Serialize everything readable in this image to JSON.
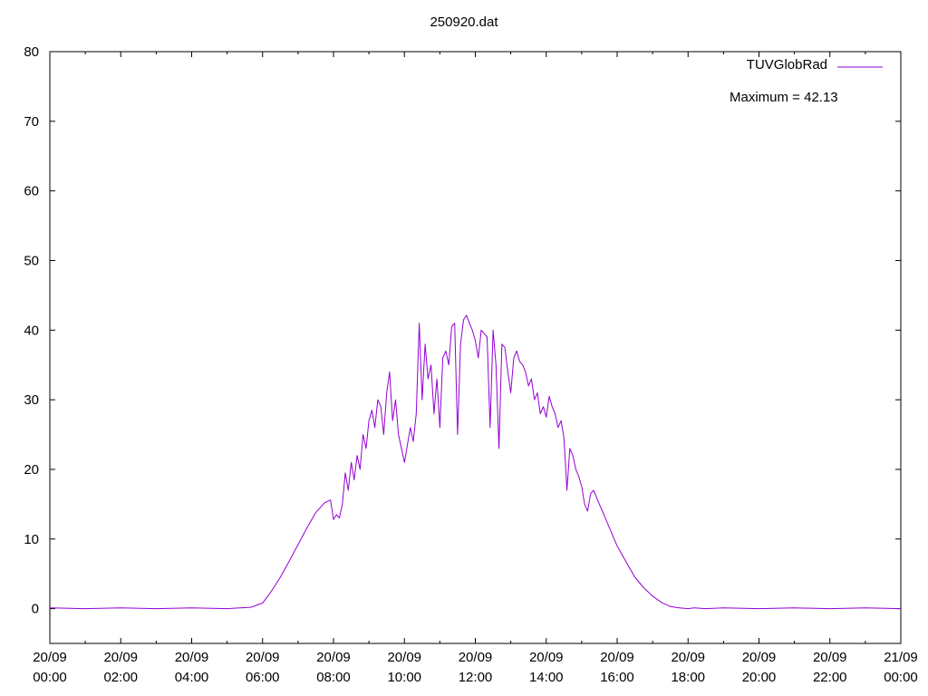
{
  "chart_data": {
    "type": "line",
    "title": "250920.dat",
    "xlabel": "",
    "ylabel": "",
    "ylim": [
      -5,
      80
    ],
    "xlim": [
      "20/09 00:00",
      "21/09 00:00"
    ],
    "x_tick_labels": [
      {
        "date": "20/09",
        "time": "00:00"
      },
      {
        "date": "20/09",
        "time": "02:00"
      },
      {
        "date": "20/09",
        "time": "04:00"
      },
      {
        "date": "20/09",
        "time": "06:00"
      },
      {
        "date": "20/09",
        "time": "08:00"
      },
      {
        "date": "20/09",
        "time": "10:00"
      },
      {
        "date": "20/09",
        "time": "12:00"
      },
      {
        "date": "20/09",
        "time": "14:00"
      },
      {
        "date": "20/09",
        "time": "16:00"
      },
      {
        "date": "20/09",
        "time": "18:00"
      },
      {
        "date": "20/09",
        "time": "20:00"
      },
      {
        "date": "20/09",
        "time": "22:00"
      },
      {
        "date": "21/09",
        "time": "00:00"
      }
    ],
    "y_ticks": [
      0,
      10,
      20,
      30,
      40,
      50,
      60,
      70,
      80
    ],
    "grid": false,
    "legend": "top-right",
    "series": [
      {
        "name": "TUVGlobRad",
        "color": "#9400d3",
        "x": [
          "00:00",
          "01:00",
          "02:00",
          "03:00",
          "04:00",
          "05:00",
          "05:40",
          "06:00",
          "06:15",
          "06:30",
          "06:45",
          "07:00",
          "07:15",
          "07:30",
          "07:45",
          "07:55",
          "08:00",
          "08:05",
          "08:10",
          "08:15",
          "08:20",
          "08:25",
          "08:30",
          "08:35",
          "08:40",
          "08:45",
          "08:50",
          "08:55",
          "09:00",
          "09:05",
          "09:10",
          "09:15",
          "09:20",
          "09:25",
          "09:30",
          "09:35",
          "09:40",
          "09:45",
          "09:50",
          "09:55",
          "10:00",
          "10:05",
          "10:10",
          "10:15",
          "10:20",
          "10:25",
          "10:30",
          "10:35",
          "10:40",
          "10:45",
          "10:50",
          "10:55",
          "11:00",
          "11:05",
          "11:10",
          "11:15",
          "11:20",
          "11:25",
          "11:30",
          "11:35",
          "11:40",
          "11:45",
          "11:50",
          "11:55",
          "12:00",
          "12:05",
          "12:10",
          "12:15",
          "12:20",
          "12:25",
          "12:30",
          "12:35",
          "12:40",
          "12:45",
          "12:50",
          "12:55",
          "13:00",
          "13:05",
          "13:10",
          "13:15",
          "13:20",
          "13:25",
          "13:30",
          "13:35",
          "13:40",
          "13:45",
          "13:50",
          "13:55",
          "14:00",
          "14:05",
          "14:10",
          "14:15",
          "14:20",
          "14:25",
          "14:30",
          "14:35",
          "14:40",
          "14:45",
          "14:50",
          "14:55",
          "15:00",
          "15:05",
          "15:10",
          "15:15",
          "15:20",
          "15:25",
          "15:30",
          "15:35",
          "15:40",
          "15:45",
          "15:50",
          "15:55",
          "16:00",
          "16:10",
          "16:20",
          "16:30",
          "16:45",
          "17:00",
          "17:15",
          "17:30",
          "17:45",
          "18:00",
          "18:10",
          "18:30",
          "19:00",
          "20:00",
          "21:00",
          "22:00",
          "23:00",
          "24:00"
        ],
        "values": [
          0.1,
          0.0,
          0.1,
          0.0,
          0.1,
          0.0,
          0.2,
          0.8,
          2.5,
          4.5,
          6.8,
          9.2,
          11.6,
          13.8,
          15.2,
          15.6,
          12.8,
          13.5,
          13.0,
          15.0,
          19.5,
          17.0,
          21.0,
          18.5,
          22.0,
          20.0,
          25.0,
          23.0,
          27.0,
          28.5,
          26.0,
          30.0,
          29.0,
          25.0,
          31.0,
          34.0,
          27.0,
          30.0,
          25.0,
          23.0,
          21.0,
          23.5,
          26.0,
          24.0,
          28.0,
          41.0,
          30.0,
          38.0,
          33.0,
          35.0,
          28.0,
          33.0,
          26.0,
          36.0,
          37.0,
          35.0,
          40.5,
          41.0,
          25.0,
          38.0,
          41.5,
          42.13,
          41.0,
          40.0,
          38.5,
          36.0,
          40.0,
          39.5,
          39.0,
          26.0,
          40.0,
          35.0,
          23.0,
          38.0,
          37.5,
          34.0,
          31.0,
          36.0,
          37.0,
          35.5,
          35.0,
          34.0,
          32.0,
          33.0,
          30.0,
          31.0,
          28.0,
          29.0,
          27.5,
          30.5,
          29.0,
          28.0,
          26.0,
          27.0,
          24.5,
          17.0,
          23.0,
          22.0,
          20.0,
          19.0,
          17.5,
          15.0,
          14.0,
          16.5,
          17.0,
          16.0,
          15.0,
          14.0,
          13.0,
          12.0,
          11.0,
          10.0,
          9.0,
          7.5,
          6.0,
          4.5,
          3.0,
          1.8,
          0.9,
          0.3,
          0.1,
          0.0,
          0.1,
          0.0,
          0.1,
          0.0,
          0.1,
          0.0,
          0.1,
          0.0
        ]
      }
    ],
    "annotations": [
      "Maximum = 42.13"
    ]
  }
}
